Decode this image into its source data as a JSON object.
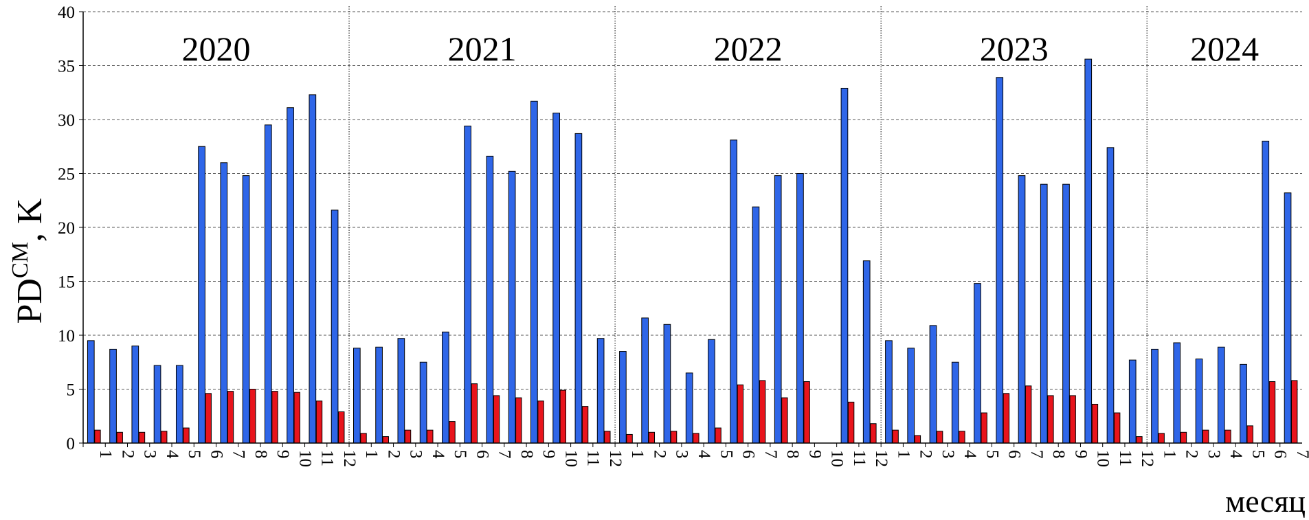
{
  "chart_data": {
    "type": "bar",
    "ylabel": "PD",
    "ylabel_sup": "CM",
    "ylabel_unit": ", K",
    "xlabel": "месяц",
    "group_labels": [
      "2020",
      "2021",
      "2022",
      "2023",
      "2024"
    ],
    "categories": [
      "1",
      "2",
      "3",
      "4",
      "5",
      "6",
      "7",
      "8",
      "9",
      "10",
      "11",
      "12",
      "1",
      "2",
      "3",
      "4",
      "5",
      "6",
      "7",
      "8",
      "9",
      "10",
      "11",
      "12",
      "1",
      "2",
      "3",
      "4",
      "5",
      "6",
      "7",
      "8",
      "9",
      "10",
      "11",
      "12",
      "1",
      "2",
      "3",
      "4",
      "5",
      "6",
      "7",
      "8",
      "9",
      "10",
      "11",
      "12",
      "1",
      "2",
      "3",
      "4",
      "5",
      "6",
      "7"
    ],
    "series": [
      {
        "color": "#2f66e8",
        "values": [
          9.5,
          8.7,
          9.0,
          7.2,
          7.2,
          27.5,
          26.0,
          24.8,
          29.5,
          31.1,
          32.3,
          21.6,
          8.8,
          8.9,
          9.7,
          7.5,
          10.3,
          29.4,
          26.6,
          25.2,
          31.7,
          30.6,
          28.7,
          9.7,
          8.5,
          11.6,
          11.0,
          6.5,
          9.6,
          28.1,
          21.9,
          24.8,
          25.0,
          null,
          32.9,
          16.9,
          9.5,
          8.8,
          10.9,
          7.5,
          14.8,
          33.9,
          24.8,
          24.0,
          24.0,
          35.6,
          27.4,
          7.7,
          8.7,
          9.3,
          7.8,
          8.9,
          7.3,
          28.0,
          23.2
        ]
      },
      {
        "color": "#e8141c",
        "values": [
          1.2,
          1.0,
          1.0,
          1.1,
          1.4,
          4.6,
          4.8,
          5.0,
          4.8,
          4.7,
          3.9,
          2.9,
          0.9,
          0.6,
          1.2,
          1.2,
          2.0,
          5.5,
          4.4,
          4.2,
          3.9,
          4.9,
          3.4,
          1.1,
          0.8,
          1.0,
          1.1,
          0.9,
          1.4,
          5.4,
          5.8,
          4.2,
          5.7,
          null,
          3.8,
          1.8,
          1.2,
          0.7,
          1.1,
          1.1,
          2.8,
          4.6,
          5.3,
          4.4,
          4.4,
          3.6,
          2.8,
          0.6,
          0.9,
          1.0,
          1.2,
          1.2,
          1.6,
          5.7,
          5.8
        ]
      }
    ],
    "ylim": [
      0,
      40
    ],
    "yticks": [
      0,
      5,
      10,
      15,
      20,
      25,
      30,
      35,
      40
    ],
    "grid": true
  }
}
